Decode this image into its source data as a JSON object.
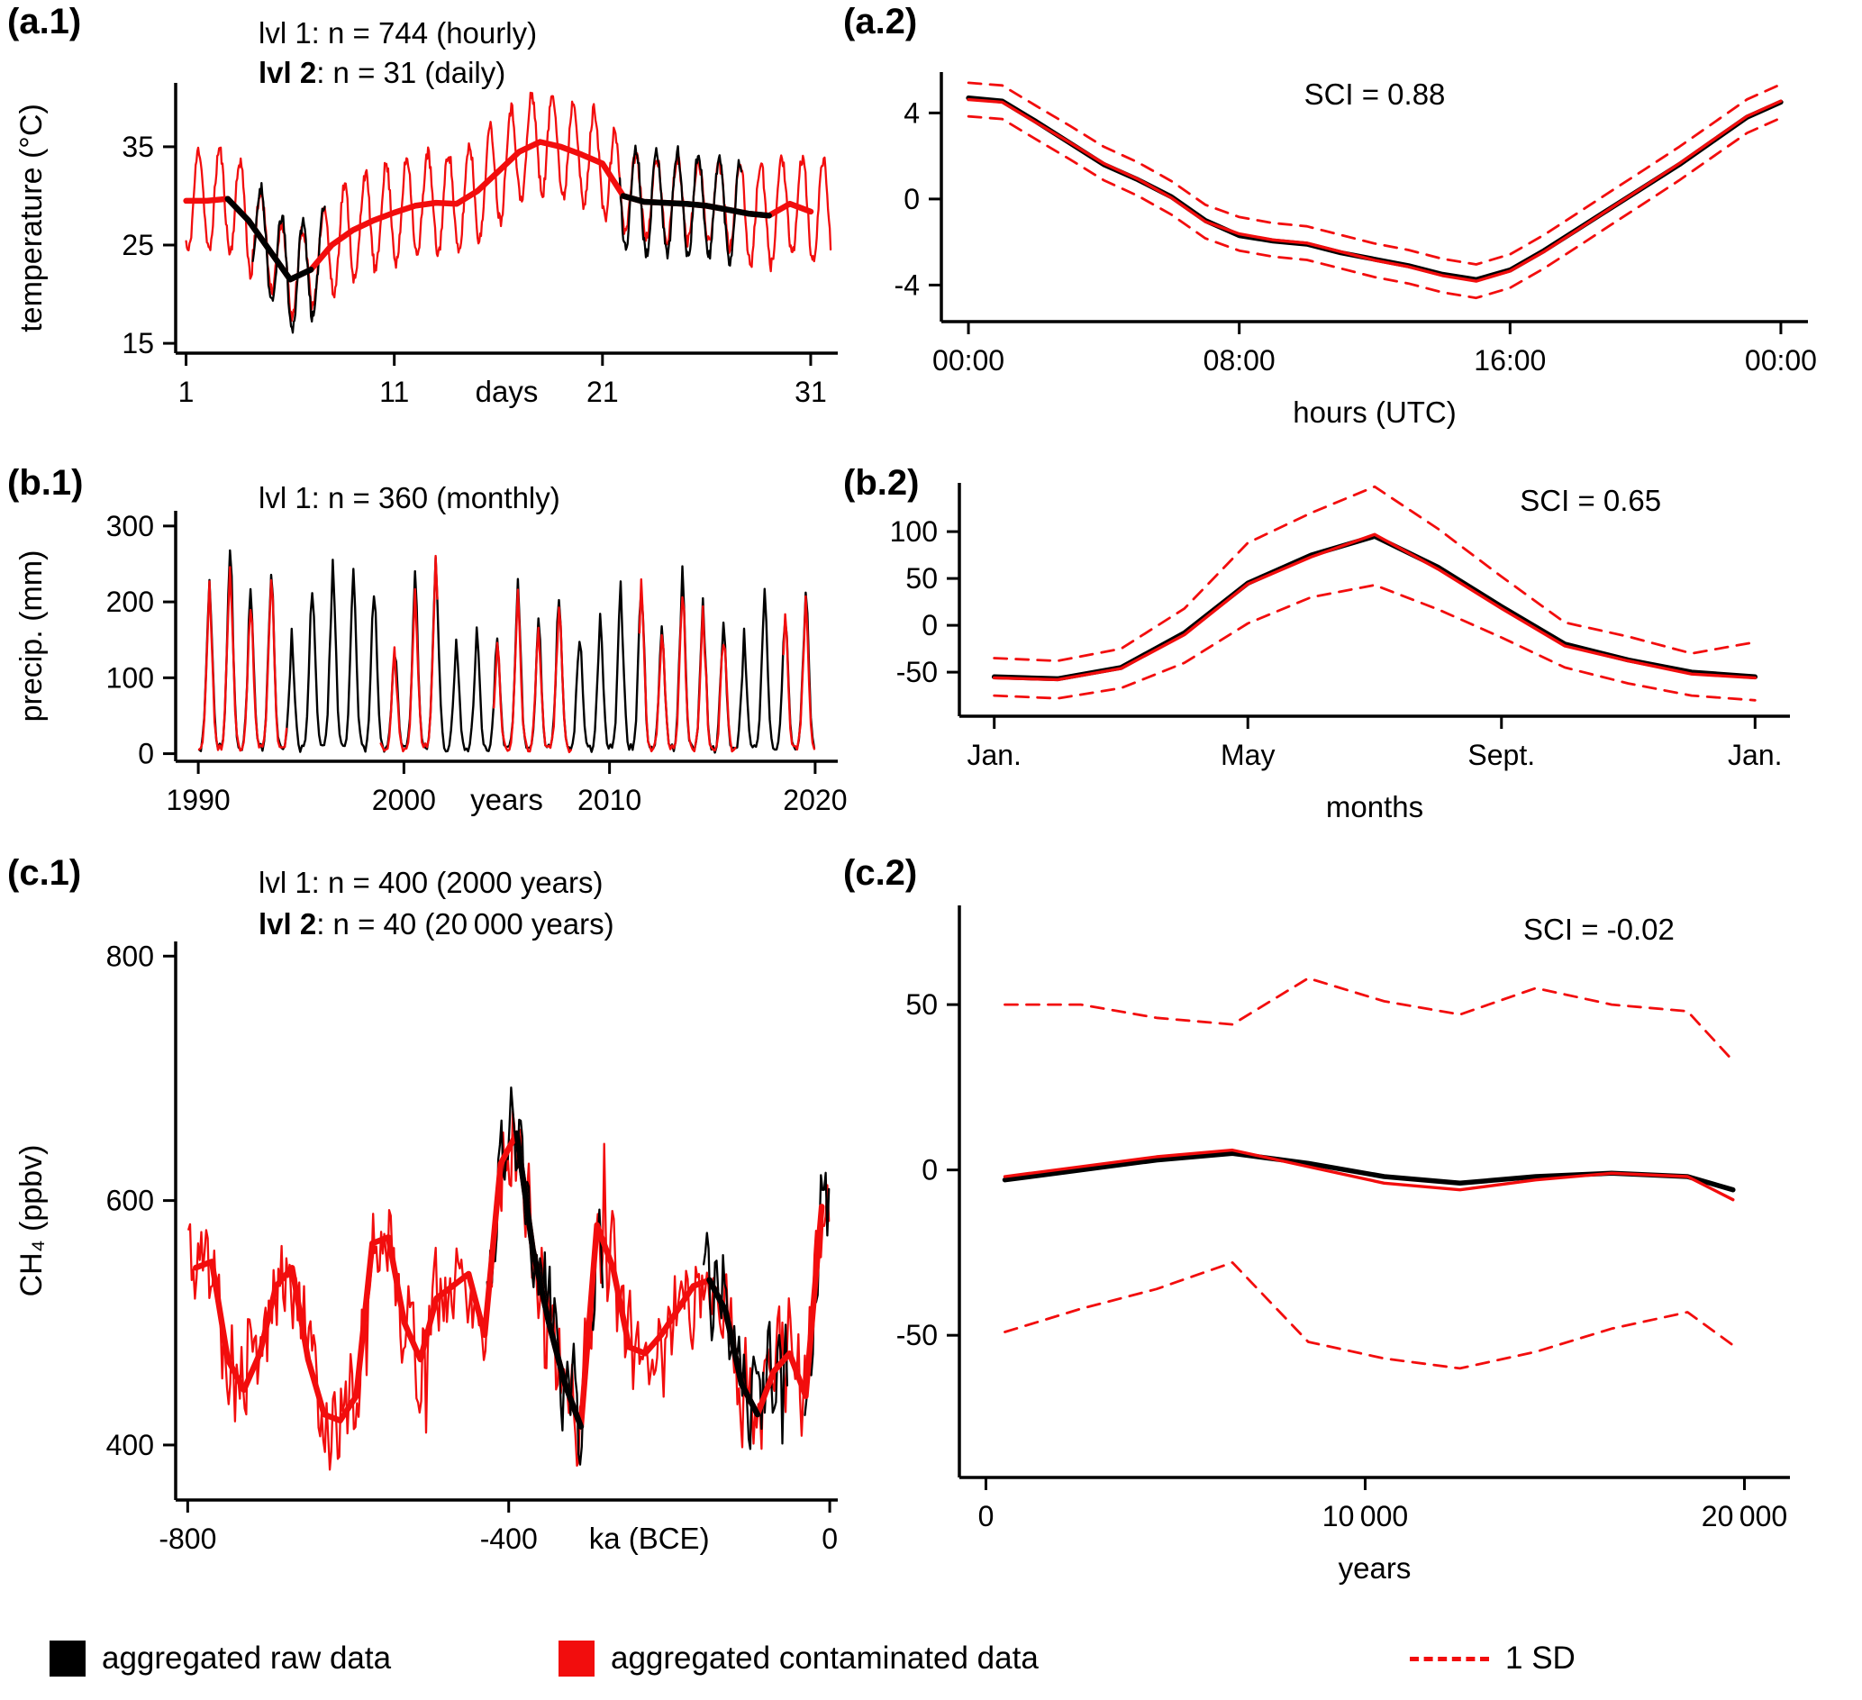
{
  "figure": {
    "type": "multi-panel scientific line figure",
    "panel_count": 6
  },
  "colors": {
    "raw": "#000000",
    "contaminated": "#f20d0d",
    "axis": "#000000"
  },
  "panels": {
    "a1": {
      "tag": "(a.1)"
    },
    "a2": {
      "tag": "(a.2)"
    },
    "b1": {
      "tag": "(b.1)"
    },
    "b2": {
      "tag": "(b.2)"
    },
    "c1": {
      "tag": "(c.1)"
    },
    "c2": {
      "tag": "(c.2)"
    }
  },
  "legend": {
    "items": [
      {
        "label": "aggregated raw data",
        "swatch": "filled-square",
        "color": "#000000"
      },
      {
        "label": "aggregated contaminated data",
        "swatch": "filled-square",
        "color": "#f20d0d"
      },
      {
        "label": "1 SD",
        "swatch": "dashed-line",
        "color": "#f20d0d"
      }
    ]
  },
  "chart_data": [
    {
      "id": "a1",
      "type": "line",
      "title_lines": [
        {
          "bold": "",
          "text": "lvl 1: n = 744 (hourly)"
        },
        {
          "bold": "lvl 2",
          "text": ": n = 31 (daily)"
        }
      ],
      "ylabel": "temperature (°C)",
      "xlabel": "days",
      "xlabel_inline": true,
      "xlim": [
        0.5,
        32.3
      ],
      "ylim": [
        14,
        41.5
      ],
      "xticks": [
        1,
        11,
        21,
        31
      ],
      "xtick_labels": [
        "1",
        "11",
        "21",
        "31"
      ],
      "yticks": [
        15,
        25,
        35
      ],
      "series_daily_raw": [
        29.5,
        29.5,
        29.7,
        27.5,
        24.5,
        21.5,
        22.5,
        25,
        26.5,
        27.5,
        28.3,
        29,
        29.3,
        29.2,
        30.5,
        32.5,
        34.5,
        35.5,
        35,
        34.2,
        33.3,
        30,
        29.4,
        29.3,
        29.2,
        29,
        28.6,
        28.2,
        28,
        29.2,
        28.4
      ],
      "hourly": {
        "n": 744,
        "amplitude": 5.2,
        "noise": 0.7,
        "seed_raw": 11,
        "seed_contaminated": 12,
        "contaminated_amp_factor": 0.8,
        "contaminated_offset": 0.4
      },
      "black_thin_windows": [
        [
          4.2,
          7.7
        ],
        [
          21.8,
          27.7
        ]
      ],
      "black_thick_windows": [
        [
          2.9,
          7.35
        ],
        [
          21.4,
          29.3
        ]
      ]
    },
    {
      "id": "a2",
      "type": "line",
      "annotation": "SCI = 0.88",
      "annotation_pos": [
        0.5,
        0.87
      ],
      "xlabel": "hours (UTC)",
      "xlabel_inline": false,
      "xlim": [
        -0.8,
        24.8
      ],
      "ylim": [
        -5.7,
        5.9
      ],
      "xticks": [
        0,
        8,
        16,
        24
      ],
      "xtick_labels": [
        "00:00",
        "08:00",
        "16:00",
        "00:00"
      ],
      "yticks": [
        -4,
        0,
        4
      ],
      "x": [
        0,
        1,
        2,
        3,
        4,
        5,
        6,
        7,
        8,
        9,
        10,
        11,
        12,
        13,
        14,
        15,
        16,
        17,
        18,
        19,
        20,
        21,
        22,
        23,
        24
      ],
      "raw": [
        4.7,
        4.55,
        3.6,
        2.6,
        1.6,
        0.9,
        0.1,
        -1.0,
        -1.7,
        -1.95,
        -2.1,
        -2.5,
        -2.8,
        -3.1,
        -3.5,
        -3.75,
        -3.3,
        -2.4,
        -1.4,
        -0.4,
        0.6,
        1.6,
        2.7,
        3.8,
        4.5
      ],
      "contaminated": [
        4.62,
        4.5,
        3.55,
        2.62,
        1.65,
        0.93,
        0.05,
        -1.05,
        -1.62,
        -1.9,
        -2.05,
        -2.45,
        -2.85,
        -3.15,
        -3.56,
        -3.82,
        -3.35,
        -2.45,
        -1.43,
        -0.4,
        0.62,
        1.65,
        2.75,
        3.85,
        4.55
      ],
      "sd": 0.78
    },
    {
      "id": "b1",
      "type": "line",
      "title_lines": [
        {
          "bold": "",
          "text": "lvl 1: n = 360 (monthly)"
        }
      ],
      "ylabel": "precip. (mm)",
      "xlabel": "years",
      "xlabel_inline": true,
      "xlim": [
        1988.9,
        2021.1
      ],
      "ylim": [
        -10,
        320
      ],
      "xticks": [
        1990,
        2000,
        2010,
        2020
      ],
      "xtick_labels": [
        "1990",
        "2000",
        "2010",
        "2020"
      ],
      "yticks": [
        0,
        100,
        200,
        300
      ],
      "start_year": 1990,
      "n_months": 360,
      "monthly_shape": [
        0.04,
        0.03,
        0.08,
        0.2,
        0.46,
        0.76,
        1,
        0.8,
        0.5,
        0.22,
        0.09,
        0.04
      ],
      "annual_peaks": [
        230,
        275,
        215,
        250,
        150,
        225,
        255,
        250,
        215,
        140,
        230,
        270,
        140,
        155,
        150,
        215,
        170,
        210,
        160,
        170,
        215,
        230,
        170,
        235,
        195,
        170,
        150,
        210,
        185,
        215
      ],
      "jitter": 14,
      "seed_raw": 7,
      "seed_contaminated": 8,
      "contaminated_scale": 0.94,
      "red_windows": [
        [
          1990,
          1994.3
        ],
        [
          1998.8,
          2001.7
        ],
        [
          2004.3,
          2008.2
        ],
        [
          2011.4,
          2016.2
        ],
        [
          2018.4,
          2020.2
        ]
      ]
    },
    {
      "id": "b2",
      "type": "line",
      "annotation": "SCI = 0.65",
      "annotation_pos": [
        0.76,
        0.88
      ],
      "xlabel": "months",
      "xlabel_inline": false,
      "xlim": [
        0.45,
        13.55
      ],
      "ylim": [
        -97,
        152
      ],
      "xticks": [
        1,
        5,
        9,
        13
      ],
      "xtick_labels": [
        "Jan.",
        "May",
        "Sept.",
        "Jan."
      ],
      "yticks": [
        -50,
        0,
        50,
        100
      ],
      "x": [
        1,
        2,
        3,
        4,
        5,
        6,
        7,
        8,
        9,
        10,
        11,
        12,
        13
      ],
      "raw": [
        -55,
        -57,
        -45,
        -8,
        45,
        75,
        95,
        62,
        20,
        -20,
        -37,
        -50,
        -55
      ],
      "contaminated": [
        -56,
        -58,
        -46,
        -10,
        44,
        73,
        97,
        60,
        18,
        -22,
        -38,
        -52,
        -56
      ],
      "sd_upper": [
        -35,
        -38,
        -25,
        18,
        88,
        120,
        148,
        103,
        52,
        3,
        -12,
        -30,
        -18
      ],
      "sd_lower": [
        -75,
        -78,
        -67,
        -40,
        2,
        30,
        43,
        17,
        -13,
        -45,
        -62,
        -75,
        -80
      ]
    },
    {
      "id": "c1",
      "type": "line",
      "title_lines": [
        {
          "bold": "",
          "text": "lvl 1: n = 400 (2000 years)"
        },
        {
          "bold": "lvl 2",
          "text": ": n = 40 (20 000 years)"
        }
      ],
      "ylabel": "CH₄ (ppbv)",
      "xlabel": "ka (BCE)",
      "xlabel_inline": true,
      "xlabel_x": -225,
      "xlim": [
        -815,
        10
      ],
      "ylim": [
        355,
        812
      ],
      "xticks": [
        -800,
        -400,
        0
      ],
      "xtick_labels": [
        "-800",
        "-400",
        "0"
      ],
      "yticks": [
        400,
        600,
        800
      ],
      "thick_x_start": -790,
      "thick_x_step": 20,
      "thick": [
        545,
        550,
        470,
        445,
        475,
        530,
        545,
        470,
        425,
        420,
        440,
        565,
        570,
        500,
        470,
        520,
        530,
        540,
        490,
        630,
        655,
        560,
        500,
        450,
        415,
        580,
        545,
        480,
        475,
        490,
        510,
        530,
        535,
        510,
        450,
        425,
        460,
        475,
        440,
        595
      ],
      "thin": {
        "n": 400,
        "noise": 46,
        "seed_raw": 6,
        "seed_contaminated": 5,
        "spike_every": 37,
        "spike_factor": 2.3
      },
      "black_thin_windows": [
        [
          -428,
          -282
        ],
        [
          -158,
          -52
        ],
        [
          -32,
          2
        ]
      ],
      "black_thick_windows": [
        [
          -408,
          -298
        ],
        [
          -162,
          -84
        ]
      ]
    },
    {
      "id": "c2",
      "type": "line",
      "annotation": "SCI = -0.02",
      "annotation_pos": [
        0.77,
        0.94
      ],
      "xlabel": "years",
      "xlabel_inline": false,
      "xlim": [
        -700,
        21200
      ],
      "ylim": [
        -93,
        80
      ],
      "xticks": [
        0,
        10000,
        20000
      ],
      "xtick_labels": [
        "0",
        "10 000",
        "20 000"
      ],
      "yticks": [
        -50,
        0,
        50
      ],
      "x": [
        500,
        2500,
        4500,
        6500,
        8500,
        10500,
        12500,
        14500,
        16500,
        18500,
        19700
      ],
      "raw": [
        -3,
        0,
        3,
        5,
        2,
        -2,
        -4,
        -2,
        -1,
        -2,
        -6
      ],
      "contaminated": [
        -2,
        1,
        4,
        6,
        1,
        -4,
        -6,
        -3,
        -1,
        -2,
        -9
      ],
      "sd_upper": [
        50,
        50,
        46,
        44,
        58,
        51,
        47,
        55,
        50,
        48,
        33
      ],
      "sd_lower": [
        -49,
        -42,
        -36,
        -28,
        -52,
        -57,
        -60,
        -55,
        -48,
        -43,
        -53
      ]
    }
  ]
}
